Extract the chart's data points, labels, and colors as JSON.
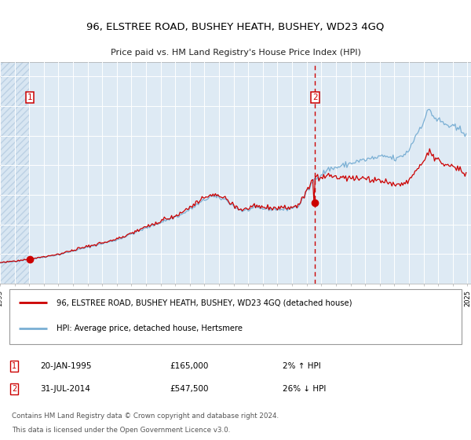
{
  "title": "96, ELSTREE ROAD, BUSHEY HEATH, BUSHEY, WD23 4GQ",
  "subtitle": "Price paid vs. HM Land Registry's House Price Index (HPI)",
  "sale1_price": 165000,
  "sale2_price": 547500,
  "legend_line1": "96, ELSTREE ROAD, BUSHEY HEATH, BUSHEY, WD23 4GQ (detached house)",
  "legend_line2": "HPI: Average price, detached house, Hertsmere",
  "footer_line1": "Contains HM Land Registry data © Crown copyright and database right 2024.",
  "footer_line2": "This data is licensed under the Open Government Licence v3.0.",
  "note1_num": "1",
  "note1_text": "20-JAN-1995",
  "note1_price": "£165,000",
  "note1_hpi": "2% ↑ HPI",
  "note2_num": "2",
  "note2_text": "31-JUL-2014",
  "note2_price": "£547,500",
  "note2_hpi": "26% ↓ HPI",
  "line_color_red": "#cc0000",
  "line_color_blue": "#7aafd4",
  "hatch_bg": "#d8e6f2",
  "plot_bg": "#deeaf4",
  "grid_color": "#ffffff",
  "ylim_max": 1500000,
  "box_edge_color": "#cc0000"
}
